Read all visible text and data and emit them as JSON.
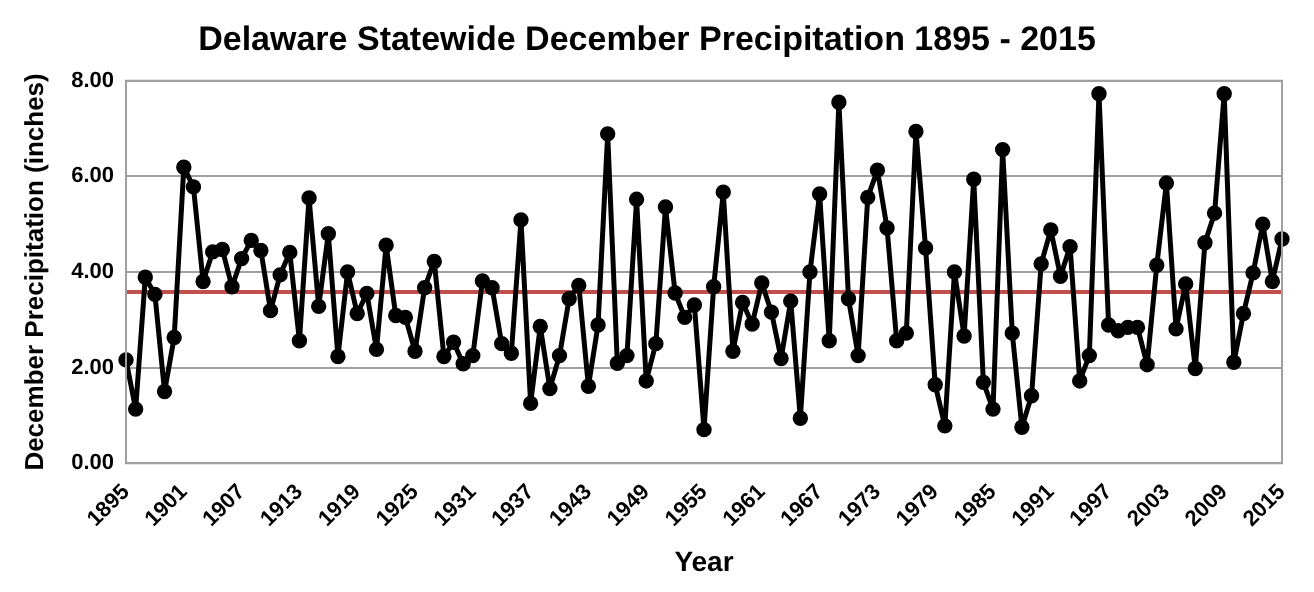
{
  "chart_data": {
    "type": "line",
    "title": "Delaware Statewide December Precipitation 1895 - 2015",
    "xlabel": "Year",
    "ylabel": "December Precipitation (inches)",
    "categories": [
      "1895",
      null,
      null,
      null,
      null,
      null,
      "1901",
      null,
      null,
      null,
      null,
      null,
      "1907",
      null,
      null,
      null,
      null,
      null,
      "1913",
      null,
      null,
      null,
      null,
      null,
      "1919",
      null,
      null,
      null,
      null,
      null,
      "1925",
      null,
      null,
      null,
      null,
      null,
      "1931",
      null,
      null,
      null,
      null,
      null,
      "1937",
      null,
      null,
      null,
      null,
      null,
      "1943",
      null,
      null,
      null,
      null,
      null,
      "1949",
      null,
      null,
      null,
      null,
      null,
      "1955",
      null,
      null,
      null,
      null,
      null,
      "1961",
      null,
      null,
      null,
      null,
      null,
      "1967",
      null,
      null,
      null,
      null,
      null,
      "1973",
      null,
      null,
      null,
      null,
      null,
      "1979",
      null,
      null,
      null,
      null,
      null,
      "1985",
      null,
      null,
      null,
      null,
      null,
      "1991",
      null,
      null,
      null,
      null,
      null,
      "1997",
      null,
      null,
      null,
      null,
      null,
      "2003",
      null,
      null,
      null,
      null,
      null,
      "2009",
      null,
      null,
      null,
      null,
      null,
      "2015"
    ],
    "series": [
      {
        "color": "#000000",
        "values": [
          2.16,
          1.13,
          3.89,
          3.53,
          1.5,
          2.63,
          6.19,
          5.78,
          3.8,
          4.42,
          4.47,
          3.69,
          4.28,
          4.66,
          4.45,
          3.19,
          3.94,
          4.41,
          2.56,
          5.55,
          3.28,
          4.8,
          2.23,
          4.0,
          3.13,
          3.55,
          2.38,
          4.56,
          3.09,
          3.05,
          2.34,
          3.67,
          4.22,
          2.23,
          2.53,
          2.08,
          2.25,
          3.81,
          3.67,
          2.5,
          2.3,
          5.09,
          1.25,
          2.86,
          1.56,
          2.25,
          3.44,
          3.72,
          1.61,
          2.89,
          6.89,
          2.09,
          2.25,
          5.52,
          1.72,
          2.5,
          5.36,
          3.56,
          3.05,
          3.31,
          0.7,
          3.69,
          5.67,
          2.34,
          3.36,
          2.91,
          3.77,
          3.16,
          2.19,
          3.39,
          0.94,
          4.0,
          5.63,
          2.56,
          7.55,
          3.44,
          2.25,
          5.56,
          6.13,
          4.92,
          2.56,
          2.72,
          6.94,
          4.5,
          1.64,
          0.78,
          4.0,
          2.66,
          5.94,
          1.69,
          1.13,
          6.56,
          2.72,
          0.75,
          1.41,
          4.17,
          4.88,
          3.91,
          4.53,
          1.72,
          2.25,
          7.73,
          2.89,
          2.77,
          2.84,
          2.84,
          2.06,
          4.14,
          5.86,
          2.81,
          3.75,
          1.98,
          4.61,
          5.23,
          7.73,
          2.11,
          3.13,
          3.98,
          5.0,
          3.8,
          4.69
        ]
      }
    ],
    "ylim": [
      0,
      8
    ],
    "yticks": [
      {
        "value": 0,
        "label": "0.00"
      },
      {
        "value": 2,
        "label": "2.00"
      },
      {
        "value": 4,
        "label": "4.00"
      },
      {
        "value": 6,
        "label": "6.00"
      },
      {
        "value": 8,
        "label": "8.00"
      }
    ],
    "ref_lines": [
      {
        "axis": "y",
        "value": 3.58,
        "color": "#c0504d"
      }
    ],
    "grid": "y",
    "legend": false,
    "marker": "circle",
    "line_style": "solid"
  }
}
